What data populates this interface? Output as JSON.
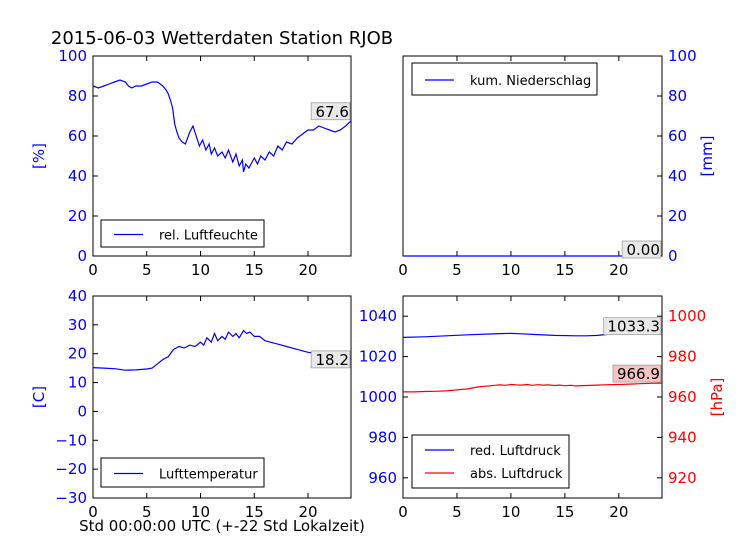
{
  "title": "2015-06-03 Wetterdaten Station RJOB",
  "colors": {
    "blue": "#0000ff",
    "red": "#ff0000",
    "black": "#000000",
    "label_bg": "#e8e8e8",
    "label_bg_red": "#f4c4c4"
  },
  "chart_data": [
    {
      "id": "humidity",
      "type": "line",
      "ylabel": "[%]",
      "xlim": [
        0,
        24
      ],
      "ylim": [
        0,
        100
      ],
      "xticks": [
        "0",
        "5",
        "10",
        "15",
        "20"
      ],
      "yticks": [
        "0",
        "20",
        "40",
        "60",
        "80",
        "100"
      ],
      "last_value_label": "67.6",
      "legend": "top-left",
      "series": [
        {
          "name": "rel. Luftfeuchte",
          "color": "#0000ff",
          "x": [
            0,
            0.5,
            1,
            1.5,
            2,
            2.5,
            3,
            3.3,
            3.6,
            4,
            4.5,
            5,
            5.5,
            6,
            6.5,
            6.8,
            7,
            7.2,
            7.4,
            7.6,
            7.8,
            8,
            8.3,
            8.6,
            9,
            9.3,
            9.6,
            9.9,
            10.2,
            10.5,
            10.8,
            11,
            11.3,
            11.6,
            12,
            12.3,
            12.6,
            13,
            13.3,
            13.6,
            13.9,
            14,
            14.2,
            14.5,
            14.8,
            15,
            15.3,
            15.6,
            16,
            16.4,
            16.8,
            17.2,
            17.6,
            18,
            18.5,
            19,
            19.5,
            20,
            20.5,
            21,
            21.5,
            22,
            22.5,
            23,
            23.5,
            24
          ],
          "y": [
            85,
            84,
            85,
            86,
            87,
            88,
            87,
            85,
            84,
            85,
            85,
            86,
            87,
            87,
            85,
            83,
            81,
            78,
            74,
            66,
            62,
            59,
            57,
            56,
            62,
            65,
            60,
            55,
            58,
            53,
            56,
            51,
            54,
            50,
            52,
            49,
            53,
            47,
            51,
            45,
            48,
            42,
            46,
            44,
            47,
            49,
            46,
            50,
            48,
            52,
            50,
            55,
            53,
            57,
            56,
            59,
            61,
            63,
            63,
            65,
            64,
            63,
            62,
            63,
            65,
            67.6
          ]
        }
      ]
    },
    {
      "id": "precip",
      "type": "line",
      "ylabel": "[mm]",
      "xlim": [
        0,
        24
      ],
      "ylim": [
        0,
        100
      ],
      "xticks": [
        "0",
        "5",
        "10",
        "15",
        "20"
      ],
      "yticks": [
        "0",
        "20",
        "40",
        "60",
        "80",
        "100"
      ],
      "last_value_label": "0.00",
      "legend": "top-left",
      "series": [
        {
          "name": "kum. Niederschlag",
          "color": "#0000ff",
          "x": [
            0,
            24
          ],
          "y": [
            0,
            0
          ]
        }
      ]
    },
    {
      "id": "temperature",
      "type": "line",
      "ylabel": "[C]",
      "xlabel": "Std 00:00:00 UTC (+-22 Std Lokalzeit)",
      "xlim": [
        0,
        24
      ],
      "ylim": [
        -30,
        40
      ],
      "xticks": [
        "0",
        "5",
        "10",
        "15",
        "20"
      ],
      "yticks": [
        "−30",
        "−20",
        "−10",
        "0",
        "10",
        "20",
        "30",
        "40"
      ],
      "last_value_label": "18.2",
      "legend": "bottom-left",
      "series": [
        {
          "name": "Lufttemperatur",
          "color": "#0000ff",
          "x": [
            0,
            1,
            2,
            3,
            4,
            5,
            5.5,
            6,
            6.5,
            7,
            7.5,
            8,
            8.5,
            9,
            9.5,
            10,
            10.3,
            10.6,
            11,
            11.3,
            11.6,
            12,
            12.3,
            12.6,
            13,
            13.3,
            13.6,
            14,
            14.3,
            14.6,
            15,
            15.5,
            16,
            16.5,
            17,
            18,
            19,
            20,
            21,
            22,
            23,
            24
          ],
          "y": [
            15.2,
            15,
            14.8,
            14.3,
            14.4,
            14.7,
            15,
            16.5,
            18,
            19,
            21.5,
            22.5,
            22,
            23,
            22.5,
            24,
            23,
            25.5,
            24,
            27,
            24.5,
            26,
            25,
            27.5,
            26,
            27,
            25.5,
            28,
            27,
            27.5,
            26,
            26,
            24.5,
            24,
            23.5,
            22.5,
            21.5,
            20.5,
            20,
            19.2,
            18.5,
            18.2
          ]
        }
      ]
    },
    {
      "id": "pressure",
      "type": "line",
      "ylabel_right": "[hPa]",
      "xlim": [
        0,
        24
      ],
      "ylim_left": [
        950,
        1050
      ],
      "ylim_right": [
        910,
        1010
      ],
      "xticks": [
        "0",
        "5",
        "10",
        "15",
        "20"
      ],
      "yticks_left": [
        "960",
        "980",
        "1000",
        "1020",
        "1040"
      ],
      "yticks_right": [
        "920",
        "940",
        "960",
        "980",
        "1000"
      ],
      "last_value_label_left": "1033.3",
      "last_value_label_right": "966.9",
      "legend": "bottom-left",
      "series": [
        {
          "name": "red. Luftdruck",
          "color": "#0000ff",
          "axis": "left",
          "x": [
            0,
            2,
            4,
            6,
            8,
            9,
            10,
            11,
            12,
            14,
            16,
            17,
            18,
            19,
            20,
            21,
            22,
            23,
            24
          ],
          "y": [
            1029.5,
            1029.8,
            1030.3,
            1030.8,
            1031.2,
            1031.4,
            1031.5,
            1031.3,
            1031,
            1030.5,
            1030.3,
            1030.3,
            1030.5,
            1031,
            1031.5,
            1032,
            1032.5,
            1033,
            1033.3
          ]
        },
        {
          "name": "abs. Luftdruck",
          "color": "#ff0000",
          "axis": "right",
          "x": [
            0,
            1,
            2,
            3,
            4,
            5,
            6,
            6.5,
            7,
            7.5,
            8,
            8.5,
            9,
            9.5,
            10,
            10.5,
            11,
            11.5,
            12,
            12.5,
            13,
            13.5,
            14,
            14.5,
            15,
            15.5,
            16,
            17,
            18,
            19,
            20,
            21,
            22,
            23,
            24
          ],
          "y": [
            962.5,
            962.5,
            962.7,
            962.8,
            963,
            963.5,
            964,
            964.5,
            965,
            965.3,
            965.5,
            965.8,
            966,
            965.8,
            966.2,
            966,
            965.9,
            966.2,
            965.8,
            966.1,
            965.9,
            966,
            965.7,
            965.9,
            965.6,
            965.8,
            965.5,
            965.7,
            965.9,
            966.1,
            966.2,
            966.4,
            966.6,
            966.8,
            966.9
          ]
        }
      ]
    }
  ]
}
